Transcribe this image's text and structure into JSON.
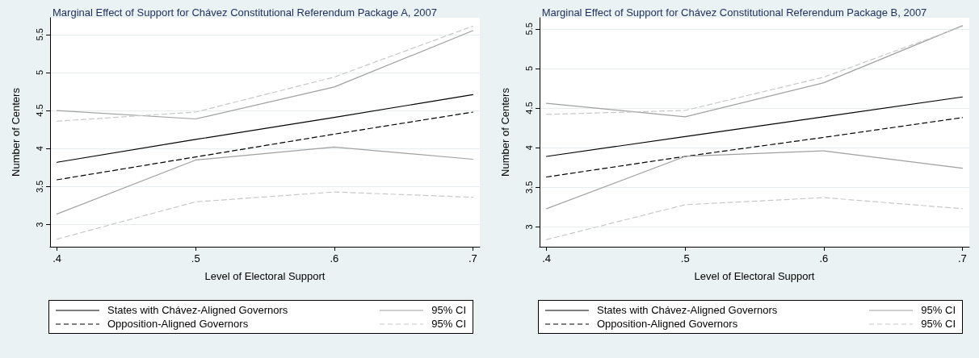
{
  "chart_data": [
    {
      "type": "line",
      "title": "Marginal Effect of Support for Chávez Constitutional Referendum Package A, 2007",
      "xlabel": "Level of Electoral Support",
      "ylabel": "Number of Centers",
      "x": [
        0.4,
        0.5,
        0.6,
        0.7
      ],
      "xlim": [
        0.395,
        0.705
      ],
      "xticks": [
        {
          "value": 0.4,
          "label": ".4"
        },
        {
          "value": 0.5,
          "label": ".5"
        },
        {
          "value": 0.6,
          "label": ".6"
        },
        {
          "value": 0.7,
          "label": ".7"
        }
      ],
      "ylim": [
        2.71,
        5.72
      ],
      "yticks": [
        3,
        3.5,
        4,
        4.5,
        5,
        5.5
      ],
      "grid": "y",
      "legend": "bottom",
      "marker": "none",
      "series": [
        {
          "name": "States with Chávez-Aligned Governors",
          "color": "#000000",
          "line_style": "solid",
          "values": [
            3.82,
            4.12,
            4.41,
            4.71
          ]
        },
        {
          "name": "95% CI",
          "color": "#a0a0a0",
          "line_style": "solid",
          "values": [
            4.5,
            4.39,
            4.81,
            5.55
          ]
        },
        {
          "name": "Opposition-Aligned Governors",
          "color": "#000000",
          "line_style": "dashed",
          "values": [
            3.59,
            3.89,
            4.19,
            4.48
          ]
        },
        {
          "name": "95% CI",
          "color": "#c8c8c8",
          "line_style": "dashed",
          "values": [
            4.36,
            4.48,
            4.94,
            5.61
          ]
        },
        {
          "color": "#a0a0a0",
          "line_style": "solid",
          "values": [
            3.14,
            3.85,
            4.02,
            3.86
          ]
        },
        {
          "color": "#c8c8c8",
          "line_style": "dashed",
          "values": [
            2.81,
            3.3,
            3.43,
            3.36
          ]
        }
      ]
    },
    {
      "type": "line",
      "title": "Marginal Effect of Support for Chávez Constitutional Referendum Package B, 2007",
      "xlabel": "Level of Electoral Support",
      "ylabel": "Number of Centers",
      "x": [
        0.4,
        0.5,
        0.6,
        0.7
      ],
      "xlim": [
        0.395,
        0.705
      ],
      "xticks": [
        {
          "value": 0.4,
          "label": ".4"
        },
        {
          "value": 0.5,
          "label": ".5"
        },
        {
          "value": 0.6,
          "label": ".6"
        },
        {
          "value": 0.7,
          "label": ".7"
        }
      ],
      "ylim": [
        2.75,
        5.64
      ],
      "yticks": [
        3,
        3.5,
        4,
        4.5,
        5,
        5.5
      ],
      "grid": "y",
      "legend": "bottom",
      "marker": "none",
      "series": [
        {
          "name": "States with Chávez-Aligned Governors",
          "color": "#000000",
          "line_style": "solid",
          "values": [
            3.89,
            4.14,
            4.39,
            4.64
          ]
        },
        {
          "name": "95% CI",
          "color": "#a0a0a0",
          "line_style": "solid",
          "values": [
            4.56,
            4.39,
            4.82,
            5.54
          ]
        },
        {
          "name": "Opposition-Aligned Governors",
          "color": "#000000",
          "line_style": "dashed",
          "values": [
            3.63,
            3.89,
            4.13,
            4.38
          ]
        },
        {
          "name": "95% CI",
          "color": "#c8c8c8",
          "line_style": "dashed",
          "values": [
            4.42,
            4.47,
            4.89,
            5.53
          ]
        },
        {
          "color": "#a0a0a0",
          "line_style": "solid",
          "values": [
            3.23,
            3.89,
            3.96,
            3.74
          ]
        },
        {
          "color": "#c8c8c8",
          "line_style": "dashed",
          "values": [
            2.84,
            3.28,
            3.37,
            3.23
          ]
        }
      ]
    }
  ]
}
